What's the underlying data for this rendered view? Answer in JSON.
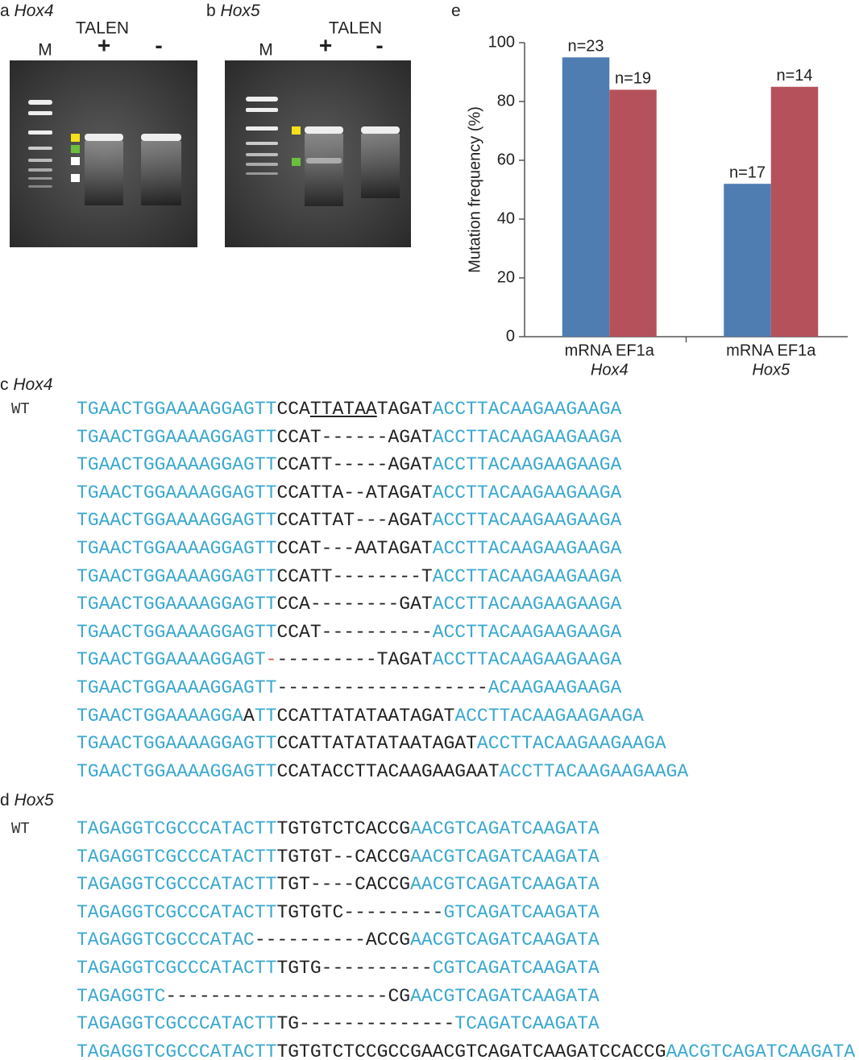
{
  "panel_a": {
    "label": "a",
    "gene": "Hox4",
    "treatment": "TALEN",
    "marker": "M",
    "plus": "+",
    "minus": "-"
  },
  "panel_b": {
    "label": "b",
    "gene": "Hox5",
    "treatment": "TALEN",
    "marker": "M",
    "plus": "+",
    "minus": "-"
  },
  "chart_data": {
    "type": "bar",
    "panel_label": "e",
    "ylabel": "Mutation frequency (%)",
    "categories": [
      "mRNA EF1a",
      "mRNA EF1a"
    ],
    "category_genes": [
      "Hox4",
      "Hox5"
    ],
    "series": [
      {
        "color": "#4f7cb1",
        "values": [
          95,
          52
        ],
        "labels": [
          "n=23",
          "n=17"
        ]
      },
      {
        "color": "#b5515b",
        "values": [
          84,
          85
        ],
        "labels": [
          "n=19",
          "n=14"
        ]
      }
    ],
    "ylim": [
      0,
      100
    ],
    "yticks": [
      0,
      20,
      40,
      60,
      80,
      100
    ]
  },
  "panel_c": {
    "label": "c",
    "gene": "Hox4",
    "rows": [
      {
        "label": "WT",
        "segments": [
          {
            "text": "TGAACTGGAAAAGGAGTT",
            "style": "flank"
          },
          {
            "text": "CCA",
            "style": "core"
          },
          {
            "text": "TTATAA",
            "style": "underline"
          },
          {
            "text": "TAGAT",
            "style": "core"
          },
          {
            "text": "ACCTTACAAGAAGAAGA",
            "style": "flank"
          }
        ]
      },
      {
        "segments": [
          {
            "text": "TGAACTGGAAAAGGAGTT",
            "style": "flank"
          },
          {
            "text": "CCAT------AGAT",
            "style": "core"
          },
          {
            "text": "ACCTTACAAGAAGAAGA",
            "style": "flank"
          }
        ]
      },
      {
        "segments": [
          {
            "text": "TGAACTGGAAAAGGAGTT",
            "style": "flank"
          },
          {
            "text": "CCATT-----AGAT",
            "style": "core"
          },
          {
            "text": "ACCTTACAAGAAGAAGA",
            "style": "flank"
          }
        ]
      },
      {
        "segments": [
          {
            "text": "TGAACTGGAAAAGGAGTT",
            "style": "flank"
          },
          {
            "text": "CCATTA--ATAGAT",
            "style": "core"
          },
          {
            "text": "ACCTTACAAGAAGAAGA",
            "style": "flank"
          }
        ]
      },
      {
        "segments": [
          {
            "text": "TGAACTGGAAAAGGAGTT",
            "style": "flank"
          },
          {
            "text": "CCATTAT---AGAT",
            "style": "core"
          },
          {
            "text": "ACCTTACAAGAAGAAGA",
            "style": "flank"
          }
        ]
      },
      {
        "segments": [
          {
            "text": "TGAACTGGAAAAGGAGTT",
            "style": "flank"
          },
          {
            "text": "CCAT---AATAGAT",
            "style": "core"
          },
          {
            "text": "ACCTTACAAGAAGAAGA",
            "style": "flank"
          }
        ]
      },
      {
        "segments": [
          {
            "text": "TGAACTGGAAAAGGAGTT",
            "style": "flank"
          },
          {
            "text": "CCATT--------T",
            "style": "core"
          },
          {
            "text": "ACCTTACAAGAAGAAGA",
            "style": "flank"
          }
        ]
      },
      {
        "segments": [
          {
            "text": "TGAACTGGAAAAGGAGTT",
            "style": "flank"
          },
          {
            "text": "CCA--------GAT",
            "style": "core"
          },
          {
            "text": "ACCTTACAAGAAGAAGA",
            "style": "flank"
          }
        ]
      },
      {
        "segments": [
          {
            "text": "TGAACTGGAAAAGGAGTT",
            "style": "flank"
          },
          {
            "text": "CCAT----------",
            "style": "core"
          },
          {
            "text": "ACCTTACAAGAAGAAGA",
            "style": "flank"
          }
        ]
      },
      {
        "segments": [
          {
            "text": "TGAACTGGAAAAGGAGT",
            "style": "flank"
          },
          {
            "text": "-",
            "style": "mark"
          },
          {
            "text": "---------TAGAT",
            "style": "core"
          },
          {
            "text": "ACCTTACAAGAAGAAGA",
            "style": "flank"
          }
        ]
      },
      {
        "segments": [
          {
            "text": "TGAACTGGAAAAGGAGTT",
            "style": "flank"
          },
          {
            "text": "-------------------",
            "style": "core"
          },
          {
            "text": "ACAAGAAGAAGA",
            "style": "flank"
          }
        ]
      },
      {
        "segments": [
          {
            "text": "TGAACTGGAAAAGGA",
            "style": "flank"
          },
          {
            "text": "A",
            "style": "core"
          },
          {
            "text": "TT",
            "style": "flank"
          },
          {
            "text": "CCATTATATAATAGAT",
            "style": "core"
          },
          {
            "text": "ACCTTACAAGAAGAAGA",
            "style": "flank"
          }
        ]
      },
      {
        "segments": [
          {
            "text": "TGAACTGGAAAAGGAGTT",
            "style": "flank"
          },
          {
            "text": "CCATTATATATAATAGAT",
            "style": "core"
          },
          {
            "text": "ACCTTACAAGAAGAAGA",
            "style": "flank"
          }
        ]
      },
      {
        "segments": [
          {
            "text": "TGAACTGGAAAAGGAGTT",
            "style": "flank"
          },
          {
            "text": "CCATACCTTACAAGAAGAAT",
            "style": "core"
          },
          {
            "text": "ACCTTACAAGAAGAAGA",
            "style": "flank"
          }
        ]
      }
    ]
  },
  "panel_d": {
    "label": "d",
    "gene": "Hox5",
    "rows": [
      {
        "label": "WT",
        "segments": [
          {
            "text": "TAGAGGTCGCCCATACTT",
            "style": "flank"
          },
          {
            "text": "TGTGTCTCACCG",
            "style": "core"
          },
          {
            "text": "AACGTCAGATCAAGATA",
            "style": "flank"
          }
        ]
      },
      {
        "segments": [
          {
            "text": "TAGAGGTCGCCCATACTT",
            "style": "flank"
          },
          {
            "text": "TGTGT--CACCG",
            "style": "core"
          },
          {
            "text": "AACGTCAGATCAAGATA",
            "style": "flank"
          }
        ]
      },
      {
        "segments": [
          {
            "text": "TAGAGGTCGCCCATACTT",
            "style": "flank"
          },
          {
            "text": "TGT----CACCG",
            "style": "core"
          },
          {
            "text": "AACGTCAGATCAAGATA",
            "style": "flank"
          }
        ]
      },
      {
        "segments": [
          {
            "text": "TAGAGGTCGCCCATACTT",
            "style": "flank"
          },
          {
            "text": "TGTGTC---------",
            "style": "core"
          },
          {
            "text": "GTCAGATCAAGATA",
            "style": "flank"
          }
        ]
      },
      {
        "segments": [
          {
            "text": "TAGAGGTCGCCCATAC",
            "style": "flank"
          },
          {
            "text": "----------ACCG",
            "style": "core"
          },
          {
            "text": "AACGTCAGATCAAGATA",
            "style": "flank"
          }
        ]
      },
      {
        "segments": [
          {
            "text": "TAGAGGTCGCCCATACTT",
            "style": "flank"
          },
          {
            "text": "TGTG----------",
            "style": "core"
          },
          {
            "text": "CGTCAGATCAAGATA",
            "style": "flank"
          }
        ]
      },
      {
        "segments": [
          {
            "text": "TAGAGGTC",
            "style": "flank"
          },
          {
            "text": "--------------------CG",
            "style": "core"
          },
          {
            "text": "AACGTCAGATCAAGATA",
            "style": "flank"
          }
        ]
      },
      {
        "segments": [
          {
            "text": "TAGAGGTCGCCCATACTT",
            "style": "flank"
          },
          {
            "text": "TG--------------",
            "style": "core"
          },
          {
            "text": "TCAGATCAAGATA",
            "style": "flank"
          }
        ]
      },
      {
        "segments": [
          {
            "text": "TAGAGGTCGCCCATACTT",
            "style": "flank"
          },
          {
            "text": "TGTGTCTCCGCCGAACGTCAGATCAAGATCCACCG",
            "style": "core"
          },
          {
            "text": "AACGTCAGATCAAGATA",
            "style": "flank"
          }
        ]
      }
    ]
  }
}
